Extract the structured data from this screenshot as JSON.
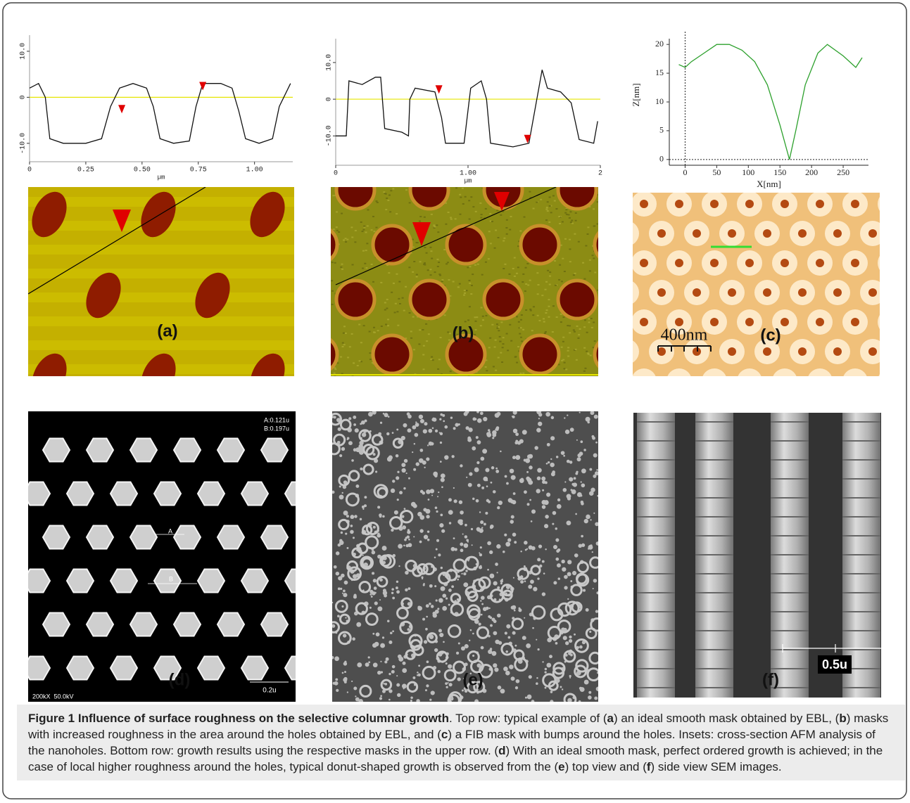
{
  "chart_data": [
    {
      "type": "line",
      "color": "#111111",
      "zero_line_color": "#e6e600",
      "xlabel": "µm",
      "xlim": [
        0,
        1.17
      ],
      "ylim": [
        -14,
        13.5
      ],
      "xticks": [
        0,
        0.25,
        {
          "value": 0.5,
          "label": "0.50"
        },
        0.75,
        {
          "value": 1,
          "label": "1.00"
        }
      ],
      "yticks": [
        {
          "value": 10,
          "label": "10.0"
        },
        0,
        {
          "value": -10,
          "label": "-10.0"
        }
      ],
      "y_tick_rotation": -90,
      "x": [
        0,
        0.04,
        0.07,
        0.09,
        0.15,
        0.25,
        0.32,
        0.36,
        0.4,
        0.46,
        0.52,
        0.55,
        0.58,
        0.64,
        0.71,
        0.74,
        0.77,
        0.85,
        0.9,
        0.93,
        0.96,
        1.02,
        1.08,
        1.11,
        1.16
      ],
      "values": [
        2,
        3,
        0,
        -9,
        -10,
        -10,
        -9,
        -2,
        2,
        3,
        2,
        -2,
        -9,
        -10,
        -9.5,
        -2,
        3,
        3,
        2,
        -3,
        -9,
        -10,
        -9,
        -2,
        3
      ],
      "markers": {
        "color": "#e00000",
        "x": [
          0.41,
          0.77
        ],
        "values": [
          -3.5,
          1.5
        ]
      }
    },
    {
      "type": "line",
      "color": "#111111",
      "zero_line_color": "#e6e600",
      "xlabel": "µm",
      "xlim": [
        0,
        2
      ],
      "ylim": [
        -18,
        16.5
      ],
      "xticks": [
        0,
        {
          "value": 1,
          "label": "1.00"
        },
        2
      ],
      "yticks": [
        {
          "value": 10,
          "label": "10.0"
        },
        0,
        {
          "value": -10,
          "label": "-10.0"
        }
      ],
      "y_tick_rotation": -90,
      "x": [
        0,
        0.08,
        0.1,
        0.2,
        0.3,
        0.34,
        0.37,
        0.5,
        0.55,
        0.56,
        0.6,
        0.75,
        0.8,
        0.83,
        0.97,
        1.0,
        1.02,
        1.1,
        1.14,
        1.17,
        1.34,
        1.46,
        1.56,
        1.6,
        1.7,
        1.78,
        1.84,
        1.95,
        1.98
      ],
      "values": [
        -10,
        -10,
        5,
        4,
        6,
        6,
        -8,
        -9,
        -10,
        0,
        3,
        2,
        -5,
        -12,
        -12,
        -3,
        3,
        5,
        0,
        -12,
        -13,
        -12,
        8,
        3,
        2,
        -1,
        -11,
        -12,
        -6
      ],
      "markers": {
        "color": "#e00000",
        "x": [
          0.78,
          1.45
        ],
        "values": [
          1.5,
          -12
        ]
      }
    },
    {
      "type": "line",
      "color": "#2ca02c",
      "xlabel": "X[nm]",
      "ylabel": "Z[nm]",
      "dashed_origin": true,
      "xlim": [
        -25,
        290
      ],
      "ylim": [
        -1,
        21
      ],
      "xticks": [
        0,
        50,
        100,
        150,
        200,
        250
      ],
      "yticks": [
        0,
        5,
        10,
        15,
        20
      ],
      "y_tick_rotation": 0,
      "x": [
        -10,
        0,
        10,
        30,
        50,
        70,
        90,
        110,
        130,
        150,
        165,
        175,
        190,
        210,
        225,
        250,
        270,
        280
      ],
      "values": [
        16.5,
        16,
        17,
        18.5,
        20,
        20,
        19,
        17,
        13,
        6,
        0,
        5,
        13,
        18.5,
        20,
        18,
        16,
        17.7
      ]
    }
  ],
  "panels": {
    "a": {
      "label": "(a)"
    },
    "b": {
      "label": "(b)"
    },
    "c": {
      "label": "(c)",
      "scale_bar": "400nm"
    },
    "d": {
      "label": "(d)",
      "measure_a": "A:0.121u",
      "measure_b": "B:0.197u",
      "marker_a": "A",
      "marker_b": "B",
      "info": "200kX  50.0kV",
      "scale_bar": "0.2u"
    },
    "e": {
      "label": "(e)"
    },
    "f": {
      "label": "(f)",
      "scale_bar": "0.5u"
    }
  },
  "caption": {
    "parts": [
      "Figure 1 Influence of surface roughness on the selective columnar growth",
      ". Top row: typical example of (",
      "a",
      ") an ideal smooth mask obtained by EBL, (",
      "b",
      ") masks with increased roughness in the area around the holes obtained by EBL, and (",
      "c",
      ") a FIB mask with bumps around the holes. Insets: cross-section AFM analysis of the nanoholes. Bottom row: growth results using the respective masks in the upper row. (",
      "d",
      ") With an ideal smooth mask, perfect ordered growth is achieved; in the case of local higher roughness around the holes, typical donut-shaped growth is observed from the (",
      "e",
      ") top view and (",
      "f",
      ") side view SEM images."
    ]
  }
}
